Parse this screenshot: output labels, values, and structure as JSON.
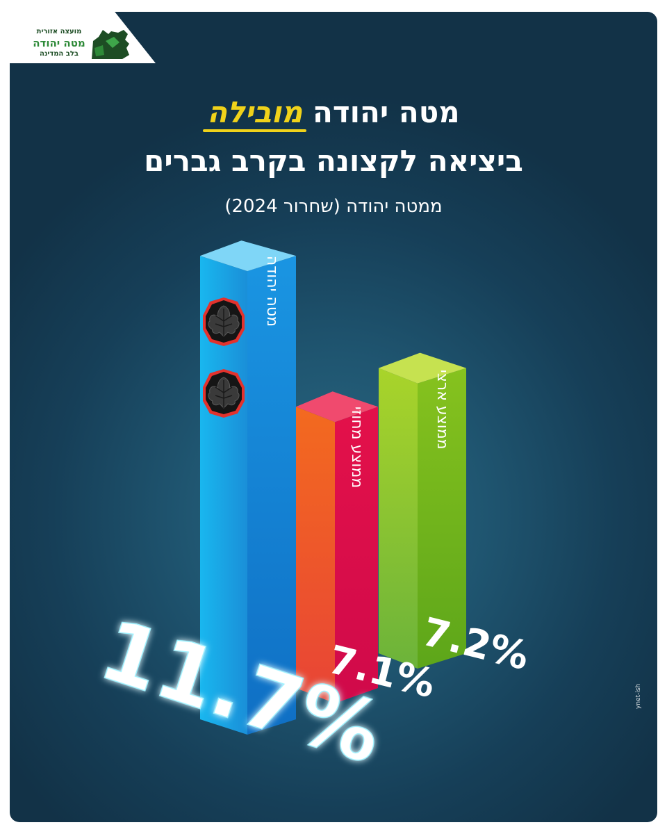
{
  "logo": {
    "line1": "מועצה אזורית",
    "line2": "מטה יהודה",
    "line3": "בלב המדינה"
  },
  "header": {
    "title_part1": "מטה יהודה",
    "title_highlight": "מובילה",
    "title_line2": "ביציאה לקצונה בקרב גברים",
    "subtitle": "ממטה יהודה (שחרור 2024)"
  },
  "colors": {
    "highlight": "#f0d21a",
    "bar1": "#1aa6e6",
    "bar2": "#e3114a",
    "bar3": "#86c21e"
  },
  "chart_data": {
    "type": "bar",
    "categories": [
      "מטה יהודה",
      "ממוצע מחוזי",
      "ממוצע ארצי"
    ],
    "values": [
      11.7,
      7.1,
      7.2
    ],
    "value_labels": [
      "11.7%",
      "7.1%",
      "7.2%"
    ],
    "unit": "%",
    "grid": false,
    "icons": [
      "grape-leaf-icon",
      "grape-leaf-icon"
    ]
  },
  "credit": "ynet-ish"
}
